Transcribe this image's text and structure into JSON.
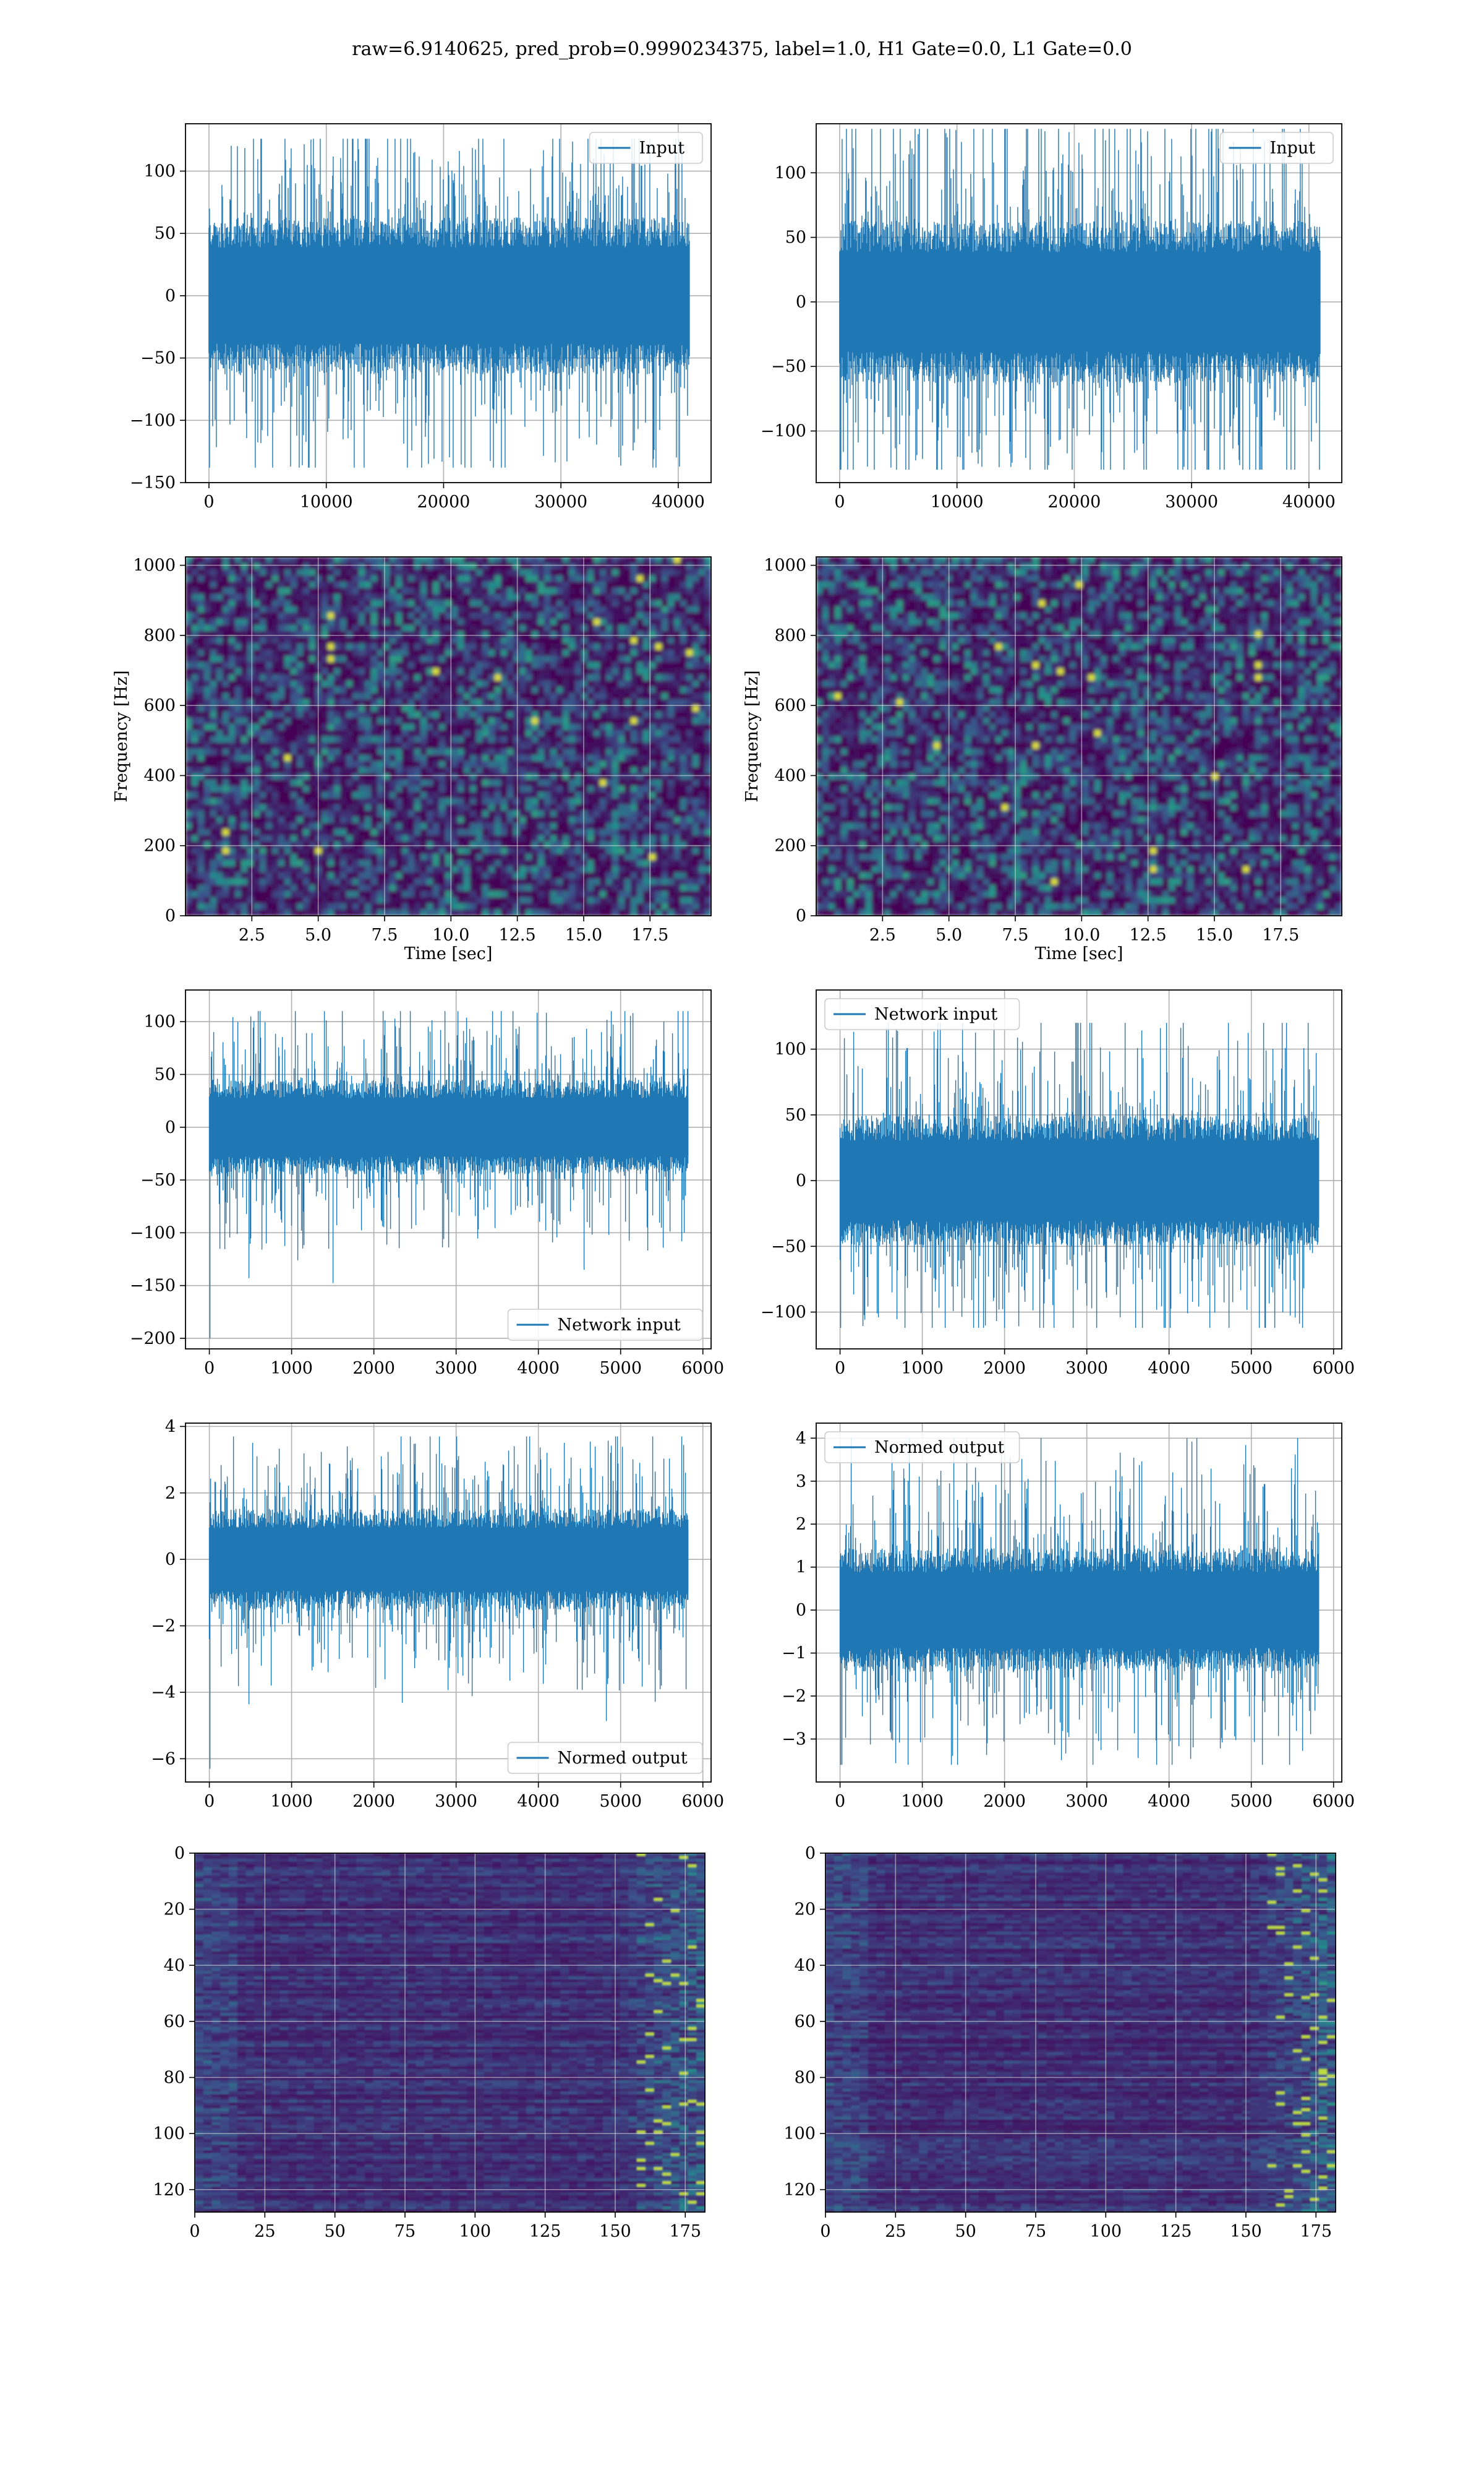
{
  "figure": {
    "title": "raw=6.9140625, pred_prob=0.9990234375, label=1.0, H1 Gate=0.0, L1 Gate=0.0"
  },
  "colors": {
    "line": "#1f77b4",
    "grid": "#b0b0b0",
    "viridis_low": "#440154",
    "viridis_mid": "#21918c",
    "viridis_high": "#fde725"
  },
  "chart_data": [
    {
      "id": "p1",
      "type": "line",
      "legend": "Input",
      "legend_loc": "upper right",
      "xlim": [
        -2000,
        42800
      ],
      "ylim": [
        -150,
        138
      ],
      "xticks": [
        0,
        10000,
        20000,
        30000,
        40000
      ],
      "yticks": [
        -150,
        -100,
        -50,
        0,
        50,
        100
      ],
      "x_range": [
        0,
        40960
      ],
      "amplitude": 70,
      "spike_max": 126,
      "spike_min": -138,
      "grid": true
    },
    {
      "id": "p2",
      "type": "line",
      "legend": "Input",
      "legend_loc": "upper right",
      "xlim": [
        -2000,
        42800
      ],
      "ylim": [
        -140,
        138
      ],
      "xticks": [
        0,
        10000,
        20000,
        30000,
        40000
      ],
      "yticks": [
        -100,
        -50,
        0,
        50,
        100
      ],
      "x_range": [
        0,
        40960
      ],
      "amplitude": 70,
      "spike_max": 134,
      "spike_min": -130,
      "grid": true
    },
    {
      "id": "p3",
      "type": "heatmap",
      "xlabel": "Time [sec]",
      "ylabel": "Frequency [Hz]",
      "xlim": [
        0,
        19.8
      ],
      "ylim": [
        0,
        1024
      ],
      "xticks": [
        2.5,
        5.0,
        7.5,
        10.0,
        12.5,
        15.0,
        17.5
      ],
      "xtick_labels": [
        "2.5",
        "5.0",
        "7.5",
        "10.0",
        "12.5",
        "15.0",
        "17.5"
      ],
      "yticks": [
        0,
        200,
        400,
        600,
        800,
        1000
      ],
      "grid": true
    },
    {
      "id": "p4",
      "type": "heatmap",
      "xlabel": "Time [sec]",
      "ylabel": "Frequency [Hz]",
      "xlim": [
        0,
        19.8
      ],
      "ylim": [
        0,
        1024
      ],
      "xticks": [
        2.5,
        5.0,
        7.5,
        10.0,
        12.5,
        15.0,
        17.5
      ],
      "xtick_labels": [
        "2.5",
        "5.0",
        "7.5",
        "10.0",
        "12.5",
        "15.0",
        "17.5"
      ],
      "yticks": [
        0,
        200,
        400,
        600,
        800,
        1000
      ],
      "grid": true
    },
    {
      "id": "p5",
      "type": "line",
      "legend": "Network input",
      "legend_loc": "lower right",
      "xlim": [
        -290,
        6100
      ],
      "ylim": [
        -210,
        130
      ],
      "xticks": [
        0,
        1000,
        2000,
        3000,
        4000,
        5000,
        6000
      ],
      "yticks": [
        -200,
        -150,
        -100,
        -50,
        0,
        50,
        100
      ],
      "x_range": [
        0,
        5824
      ],
      "amplitude": 50,
      "spike_max": 110,
      "spike_min": -200,
      "grid": true
    },
    {
      "id": "p6",
      "type": "line",
      "legend": "Network input",
      "legend_loc": "upper left",
      "xlim": [
        -290,
        6100
      ],
      "ylim": [
        -128,
        145
      ],
      "xticks": [
        0,
        1000,
        2000,
        3000,
        4000,
        5000,
        6000
      ],
      "yticks": [
        -100,
        -50,
        0,
        50,
        100
      ],
      "x_range": [
        0,
        5824
      ],
      "amplitude": 55,
      "spike_max": 120,
      "spike_min": -112,
      "grid": true
    },
    {
      "id": "p7",
      "type": "line",
      "legend": "Normed output",
      "legend_loc": "lower right",
      "xlim": [
        -290,
        6100
      ],
      "ylim": [
        -6.7,
        4.1
      ],
      "xticks": [
        0,
        1000,
        2000,
        3000,
        4000,
        5000,
        6000
      ],
      "yticks": [
        -6,
        -4,
        -2,
        0,
        2,
        4
      ],
      "x_range": [
        0,
        5824
      ],
      "amplitude": 1.7,
      "spike_max": 3.7,
      "spike_min": -6.3,
      "grid": true
    },
    {
      "id": "p8",
      "type": "line",
      "legend": "Normed output",
      "legend_loc": "upper left",
      "xlim": [
        -290,
        6100
      ],
      "ylim": [
        -4.0,
        4.35
      ],
      "xticks": [
        0,
        1000,
        2000,
        3000,
        4000,
        5000,
        6000
      ],
      "yticks": [
        -3,
        -2,
        -1,
        0,
        1,
        2,
        3,
        4
      ],
      "x_range": [
        0,
        5824
      ],
      "amplitude": 1.6,
      "spike_max": 4.0,
      "spike_min": -3.6,
      "grid": true
    },
    {
      "id": "p9",
      "type": "heatmap",
      "xlim": [
        0,
        182
      ],
      "ylim": [
        128,
        0
      ],
      "xticks": [
        0,
        25,
        50,
        75,
        100,
        125,
        150,
        175
      ],
      "yticks": [
        0,
        20,
        40,
        60,
        80,
        100,
        120
      ],
      "grid": true
    },
    {
      "id": "p10",
      "type": "heatmap",
      "xlim": [
        0,
        182
      ],
      "ylim": [
        128,
        0
      ],
      "xticks": [
        0,
        25,
        50,
        75,
        100,
        125,
        150,
        175
      ],
      "yticks": [
        0,
        20,
        40,
        60,
        80,
        100,
        120
      ],
      "grid": true
    }
  ]
}
